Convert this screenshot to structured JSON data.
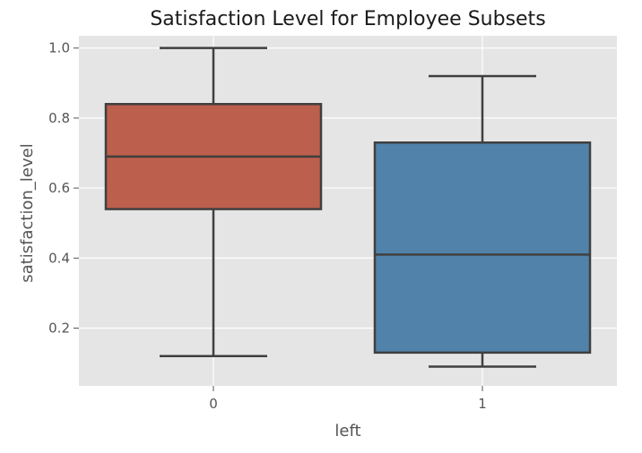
{
  "chart_data": {
    "type": "box",
    "title": "Satisfaction Level for Employee Subsets",
    "xlabel": "left",
    "ylabel": "satisfaction_level",
    "categories": [
      "0",
      "1"
    ],
    "ylim": [
      0.035,
      1.035
    ],
    "yticks": [
      0.2,
      0.4,
      0.6,
      0.8,
      1.0
    ],
    "ytick_labels": [
      "0.2",
      "0.4",
      "0.6",
      "0.8",
      "1.0"
    ],
    "grid": true,
    "boxes": [
      {
        "category": "0",
        "whisker_low": 0.12,
        "q1": 0.54,
        "median": 0.69,
        "q3": 0.84,
        "whisker_high": 1.0,
        "color": "#bc5f4c"
      },
      {
        "category": "1",
        "whisker_low": 0.09,
        "q1": 0.13,
        "median": 0.41,
        "q3": 0.73,
        "whisker_high": 0.92,
        "color": "#5082aa"
      }
    ],
    "colors": {
      "background": "#e5e5e5",
      "grid": "#ffffff",
      "edge": "#3f3f3f"
    }
  }
}
